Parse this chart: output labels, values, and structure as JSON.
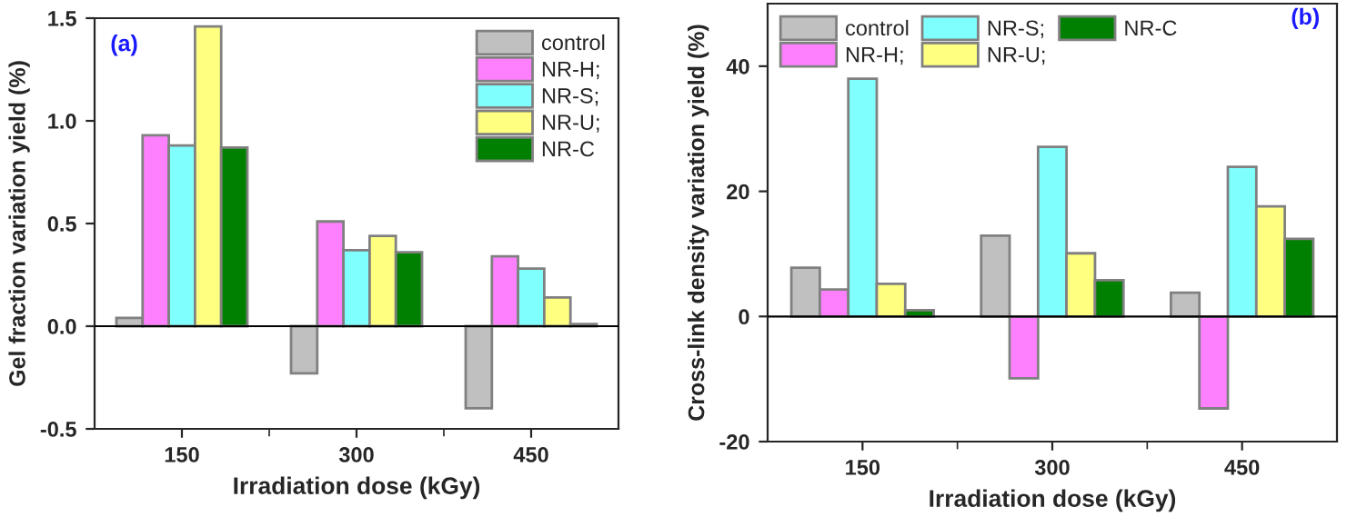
{
  "chart_data": [
    {
      "type": "bar",
      "xlabel": "Irradiation dose (kGy)",
      "ylabel": "Gel fraction variation yield (%)",
      "annotations": [
        "(a)"
      ],
      "categories": [
        "150",
        "300",
        "450"
      ],
      "series": [
        {
          "name": "control",
          "color": "#c0c0c0",
          "values": [
            0.04,
            -0.23,
            -0.4
          ]
        },
        {
          "name": "NR-H;",
          "color": "#ff80ff",
          "values": [
            0.93,
            0.51,
            0.34
          ]
        },
        {
          "name": "NR-S;",
          "color": "#80ffff",
          "values": [
            0.88,
            0.37,
            0.28
          ]
        },
        {
          "name": "NR-U;",
          "color": "#ffff80",
          "values": [
            1.46,
            0.44,
            0.14
          ]
        },
        {
          "name": "NR-C",
          "color": "#008000",
          "values": [
            0.87,
            0.36,
            0.01
          ]
        }
      ],
      "ylim": [
        -0.5,
        1.5
      ],
      "yticks": [
        -0.5,
        {
          "value": 0,
          "label": "0.0"
        },
        0.5,
        {
          "value": 1,
          "label": "1.0"
        },
        1.5
      ],
      "ref_lines": [
        {
          "axis": "y",
          "value": 0
        }
      ],
      "legend": "top right",
      "grid": false
    },
    {
      "type": "bar",
      "xlabel": "Irradiation dose (kGy)",
      "ylabel": "Cross-link density variation yield (%)",
      "annotations": [
        "(b)"
      ],
      "categories": [
        "150",
        "300",
        "450"
      ],
      "series": [
        {
          "name": "control",
          "color": "#c0c0c0",
          "values": [
            7.8,
            12.9,
            3.8
          ]
        },
        {
          "name": "NR-H;",
          "color": "#ff80ff",
          "values": [
            4.3,
            -9.9,
            -14.7
          ]
        },
        {
          "name": "NR-S;",
          "color": "#80ffff",
          "values": [
            38,
            27.1,
            23.9
          ]
        },
        {
          "name": "NR-U;",
          "color": "#ffff80",
          "values": [
            5.2,
            10.1,
            17.6
          ]
        },
        {
          "name": "NR-C",
          "color": "#008000",
          "values": [
            1.0,
            5.8,
            12.4
          ]
        }
      ],
      "ylim": [
        -20,
        50
      ],
      "yticks": [
        -20,
        0,
        20,
        40
      ],
      "ref_lines": [
        {
          "axis": "y",
          "value": 0
        }
      ],
      "legend": "top left",
      "grid": false
    }
  ]
}
